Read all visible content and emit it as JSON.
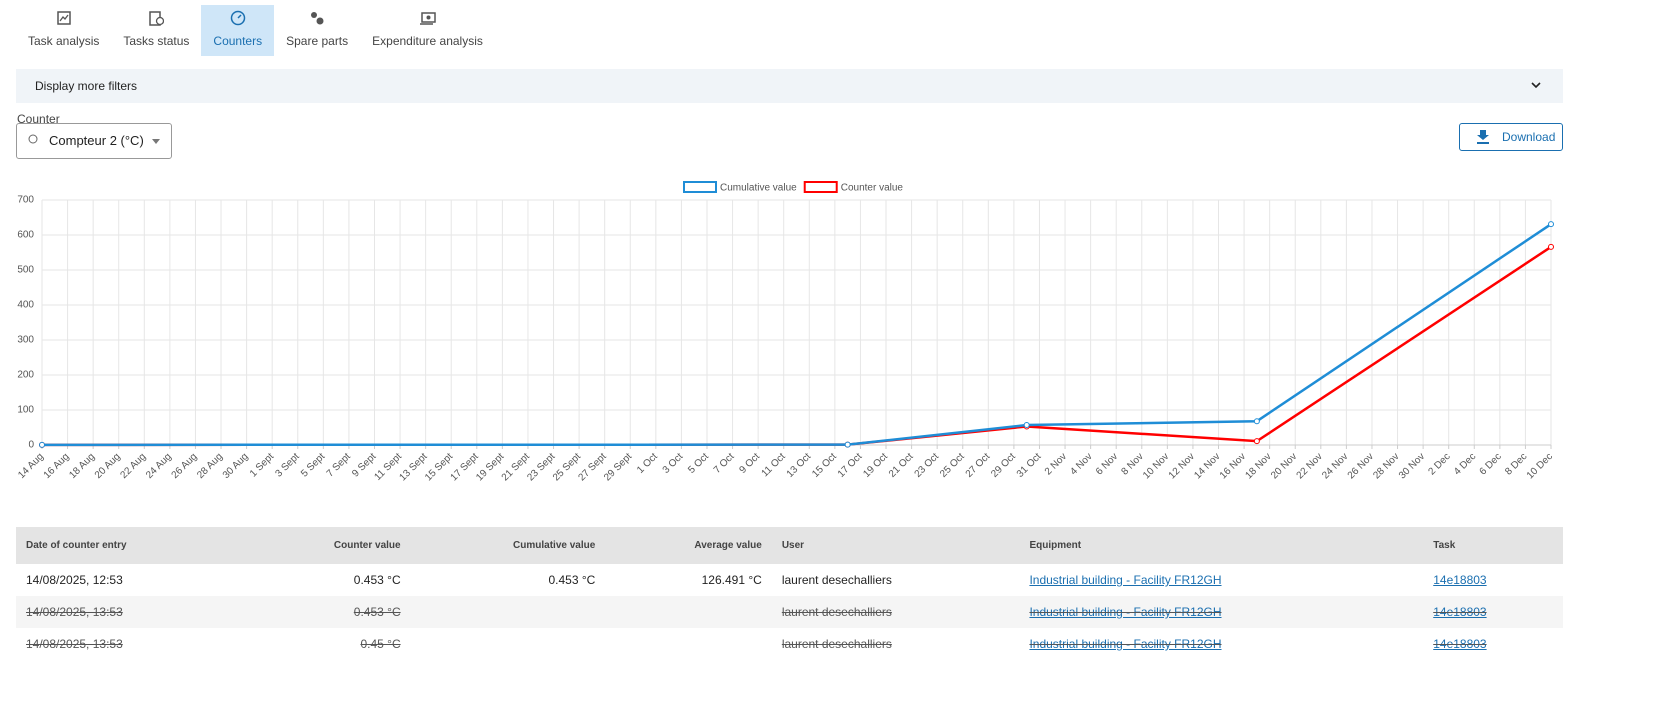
{
  "tabs": [
    "Task analysis",
    "Tasks status",
    "Counters",
    "Spare parts",
    "Expenditure analysis"
  ],
  "filters": "Display more filters",
  "counter": {
    "label": "Counter",
    "selected": "Compteur 2 (°C)"
  },
  "download": "Download",
  "chart_data": {
    "type": "line",
    "x": [
      "08-14",
      "10-16",
      "10-30",
      "11-17",
      "12-10"
    ],
    "series": [
      {
        "name": "Cumulative value",
        "color": "#1f8dd6",
        "values": [
          0.453,
          1,
          57,
          68,
          631
        ]
      },
      {
        "name": "Counter value",
        "color": "#ff0000",
        "values": [
          0.453,
          1,
          53,
          11,
          566
        ]
      }
    ],
    "xlim": [
      "08-14",
      "12-10"
    ],
    "xticks": [
      {
        "value": "08-14",
        "label": "14 Aug"
      },
      {
        "value": "08-16",
        "label": "16 Aug"
      },
      {
        "value": "08-18",
        "label": "18 Aug"
      },
      {
        "value": "08-20",
        "label": "20 Aug"
      },
      {
        "value": "08-22",
        "label": "22 Aug"
      },
      {
        "value": "08-24",
        "label": "24 Aug"
      },
      {
        "value": "08-26",
        "label": "26 Aug"
      },
      {
        "value": "08-28",
        "label": "28 Aug"
      },
      {
        "value": "08-30",
        "label": "30 Aug"
      },
      {
        "value": "09-01",
        "label": "1 Sept"
      },
      {
        "value": "09-03",
        "label": "3 Sept"
      },
      {
        "value": "09-05",
        "label": "5 Sept"
      },
      {
        "value": "09-07",
        "label": "7 Sept"
      },
      {
        "value": "09-09",
        "label": "9 Sept"
      },
      {
        "value": "09-11",
        "label": "11 Sept"
      },
      {
        "value": "09-13",
        "label": "13 Sept"
      },
      {
        "value": "09-15",
        "label": "15 Sept"
      },
      {
        "value": "09-17",
        "label": "17 Sept"
      },
      {
        "value": "09-19",
        "label": "19 Sept"
      },
      {
        "value": "09-21",
        "label": "21 Sept"
      },
      {
        "value": "09-23",
        "label": "23 Sept"
      },
      {
        "value": "09-25",
        "label": "25 Sept"
      },
      {
        "value": "09-27",
        "label": "27 Sept"
      },
      {
        "value": "09-29",
        "label": "29 Sept"
      },
      {
        "value": "10-01",
        "label": "1 Oct"
      },
      {
        "value": "10-03",
        "label": "3 Oct"
      },
      {
        "value": "10-05",
        "label": "5 Oct"
      },
      {
        "value": "10-07",
        "label": "7 Oct"
      },
      {
        "value": "10-09",
        "label": "9 Oct"
      },
      {
        "value": "10-11",
        "label": "11 Oct"
      },
      {
        "value": "10-13",
        "label": "13 Oct"
      },
      {
        "value": "10-15",
        "label": "15 Oct"
      },
      {
        "value": "10-17",
        "label": "17 Oct"
      },
      {
        "value": "10-19",
        "label": "19 Oct"
      },
      {
        "value": "10-21",
        "label": "21 Oct"
      },
      {
        "value": "10-23",
        "label": "23 Oct"
      },
      {
        "value": "10-25",
        "label": "25 Oct"
      },
      {
        "value": "10-27",
        "label": "27 Oct"
      },
      {
        "value": "10-29",
        "label": "29 Oct"
      },
      {
        "value": "10-31",
        "label": "31 Oct"
      },
      {
        "value": "11-02",
        "label": "2 Nov"
      },
      {
        "value": "11-04",
        "label": "4 Nov"
      },
      {
        "value": "11-06",
        "label": "6 Nov"
      },
      {
        "value": "11-08",
        "label": "8 Nov"
      },
      {
        "value": "11-10",
        "label": "10 Nov"
      },
      {
        "value": "11-12",
        "label": "12 Nov"
      },
      {
        "value": "11-14",
        "label": "14 Nov"
      },
      {
        "value": "11-16",
        "label": "16 Nov"
      },
      {
        "value": "11-18",
        "label": "18 Nov"
      },
      {
        "value": "11-20",
        "label": "20 Nov"
      },
      {
        "value": "11-22",
        "label": "22 Nov"
      },
      {
        "value": "11-24",
        "label": "24 Nov"
      },
      {
        "value": "11-26",
        "label": "26 Nov"
      },
      {
        "value": "11-28",
        "label": "28 Nov"
      },
      {
        "value": "11-30",
        "label": "30 Nov"
      },
      {
        "value": "12-02",
        "label": "2 Dec"
      },
      {
        "value": "12-04",
        "label": "4 Dec"
      },
      {
        "value": "12-06",
        "label": "6 Dec"
      },
      {
        "value": "12-08",
        "label": "8 Dec"
      },
      {
        "value": "12-10",
        "label": "10 Dec"
      }
    ],
    "ylim": [
      0,
      700
    ],
    "yticks": [
      0,
      100,
      200,
      300,
      400,
      500,
      600,
      700
    ],
    "grid": true
  },
  "table": {
    "columns": [
      "Date of counter entry",
      "Counter value",
      "Cumulative value",
      "Average value",
      "User",
      "Equipment",
      "Task"
    ],
    "rows": [
      {
        "struck": false,
        "cells": [
          "14/08/2025, 12:53",
          "0.453 °C",
          "0.453 °C",
          "126.491 °C",
          "laurent desechalliers",
          "Industrial building - Facility FR12GH",
          "14e18803"
        ]
      },
      {
        "struck": true,
        "cells": [
          "14/08/2025, 13:53",
          "0.453 °C",
          null,
          null,
          "laurent desechalliers",
          "Industrial building - Facility FR12GH",
          "14e18803"
        ]
      },
      {
        "struck": true,
        "cells": [
          "14/08/2025, 13:53",
          "0.45 °C",
          null,
          null,
          "laurent desechalliers",
          "Industrial building - Facility FR12GH",
          "14e18803"
        ]
      }
    ]
  }
}
